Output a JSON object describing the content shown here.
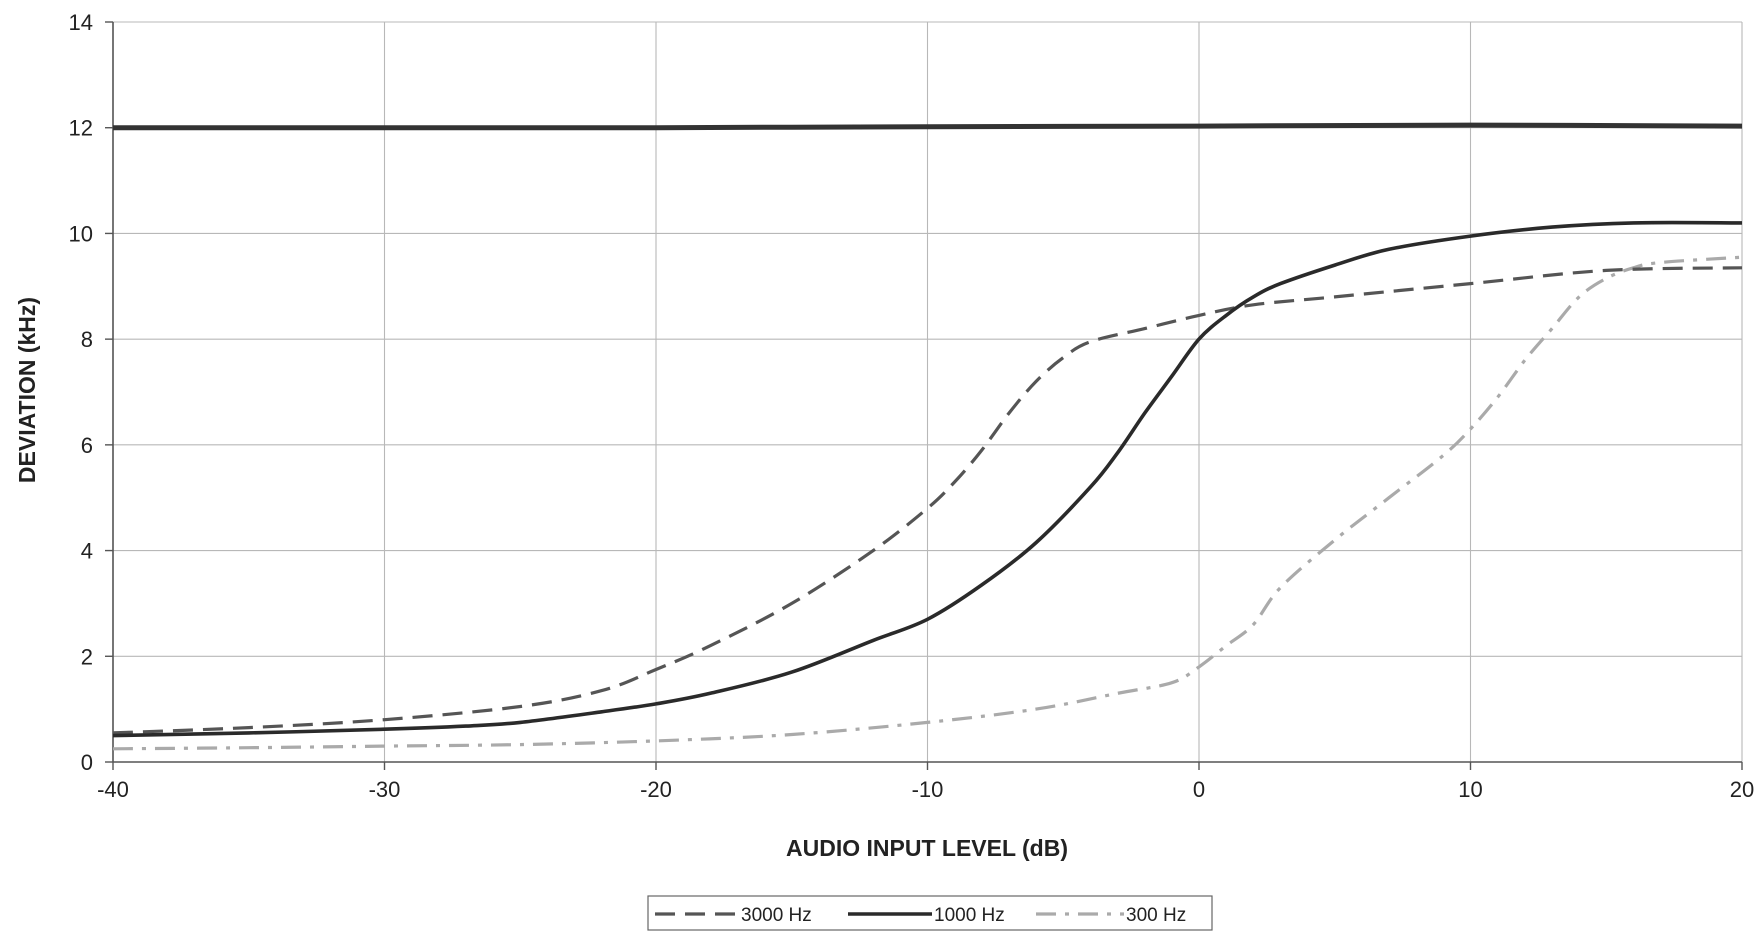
{
  "chart_data": {
    "type": "line",
    "title": "",
    "xlabel": "AUDIO INPUT LEVEL (dB)",
    "ylabel": "DEVIATION (kHz)",
    "xlim": [
      -40,
      20
    ],
    "ylim": [
      0,
      14
    ],
    "xticks": [
      -40,
      -30,
      -20,
      -10,
      0,
      10,
      20
    ],
    "yticks": [
      0,
      2,
      4,
      6,
      8,
      10,
      12,
      14
    ],
    "grid": true,
    "legend_position": "bottom-center",
    "series": [
      {
        "name": "",
        "color": "#333333",
        "style": "solid-thick",
        "x": [
          -40,
          -30,
          -20,
          -10,
          0,
          10,
          20
        ],
        "y": [
          12,
          12,
          12,
          12.02,
          12.03,
          12.05,
          12.03
        ]
      },
      {
        "name": "3000 Hz",
        "color": "#555555",
        "style": "dashed",
        "x": [
          -40,
          -35,
          -30,
          -25,
          -22,
          -20,
          -18,
          -15,
          -12,
          -10,
          -9,
          -8,
          -7,
          -6,
          -5,
          -4,
          -2,
          0,
          2,
          5,
          10,
          15,
          20
        ],
        "y": [
          0.55,
          0.65,
          0.8,
          1.05,
          1.35,
          1.75,
          2.2,
          3.0,
          4.0,
          4.8,
          5.3,
          5.9,
          6.6,
          7.2,
          7.65,
          7.95,
          8.2,
          8.45,
          8.65,
          8.8,
          9.05,
          9.3,
          9.35
        ]
      },
      {
        "name": "1000 Hz",
        "color": "#2a2a2a",
        "style": "solid",
        "x": [
          -40,
          -35,
          -30,
          -27,
          -25,
          -22,
          -20,
          -18,
          -15,
          -12,
          -10,
          -8,
          -6,
          -4,
          -3,
          -2,
          -1,
          0,
          1,
          2,
          3,
          5,
          7,
          10,
          13,
          16,
          20
        ],
        "y": [
          0.5,
          0.55,
          0.62,
          0.68,
          0.75,
          0.95,
          1.1,
          1.3,
          1.7,
          2.3,
          2.7,
          3.35,
          4.15,
          5.2,
          5.85,
          6.6,
          7.3,
          8.0,
          8.45,
          8.8,
          9.05,
          9.4,
          9.7,
          9.95,
          10.12,
          10.2,
          10.2
        ]
      },
      {
        "name": "300 Hz",
        "color": "#aaaaaa",
        "style": "dash-dot",
        "x": [
          -40,
          -35,
          -30,
          -25,
          -20,
          -15,
          -10,
          -6,
          -3,
          -1,
          0,
          1,
          2,
          3,
          5,
          7,
          9,
          10,
          11,
          12,
          13,
          14,
          15,
          16,
          17,
          20
        ],
        "y": [
          0.25,
          0.27,
          0.3,
          0.33,
          0.4,
          0.52,
          0.75,
          1.0,
          1.3,
          1.5,
          1.8,
          2.2,
          2.6,
          3.3,
          4.2,
          5.0,
          5.8,
          6.3,
          6.9,
          7.6,
          8.2,
          8.8,
          9.15,
          9.35,
          9.45,
          9.55
        ]
      }
    ]
  }
}
